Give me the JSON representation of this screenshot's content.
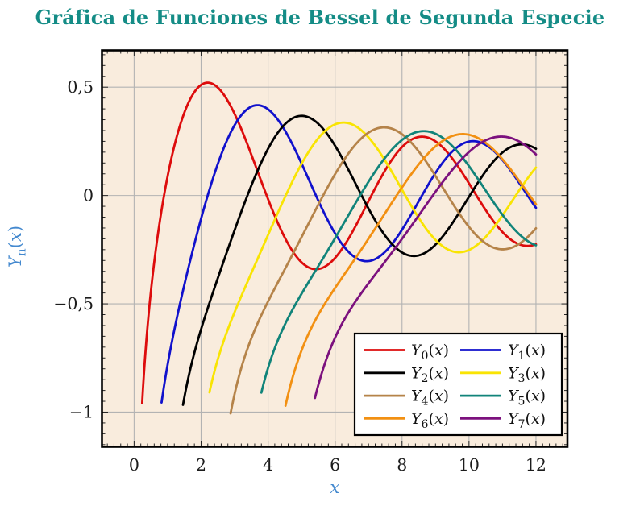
{
  "chart_data": {
    "type": "line",
    "title": "Gráfica de Funciones de Bessel de Segunda Especie",
    "title_color": "#148c86",
    "xlabel": "x",
    "ylabel": {
      "base": "Y",
      "sub": "n",
      "suffix": "(x)"
    },
    "axis_label_color": "#4489cf",
    "xlim": [
      -0.96,
      12.94
    ],
    "ylim": [
      -1.16,
      0.67
    ],
    "x_ticks": [
      {
        "v": 0,
        "label": "0"
      },
      {
        "v": 2,
        "label": "2"
      },
      {
        "v": 4,
        "label": "4"
      },
      {
        "v": 6,
        "label": "6"
      },
      {
        "v": 8,
        "label": "8"
      },
      {
        "v": 10,
        "label": "10"
      },
      {
        "v": 12,
        "label": "12"
      }
    ],
    "y_ticks": [
      {
        "v": 0.5,
        "label": "0,5"
      },
      {
        "v": 0,
        "label": "0"
      },
      {
        "v": -0.5,
        "label": "−0,5"
      },
      {
        "v": -1,
        "label": "−1"
      }
    ],
    "x_minor_step": 0.2,
    "y_minor_step": 0.05,
    "grid": true,
    "grid_color": "#b3b3b3",
    "plot_background": "#f9ecdd",
    "frame_color": "#000000",
    "tick_color": "#262626",
    "tick_label_color": "#1c1c1c",
    "function_family": "Bessel functions of the second kind Y_n(x), orders n = 0 to 7",
    "legend": {
      "position": "bottom-right",
      "columns": 2,
      "background": "#ffffff",
      "border_color": "#000000"
    },
    "series": [
      {
        "n": 0,
        "label": "Y_0(x)",
        "color": "#dd0c0c",
        "x_start": 0.24,
        "x_end": 12,
        "key_points": [
          [
            0.24,
            -0.96
          ],
          [
            0.894,
            0
          ],
          [
            2.197,
            0.521
          ],
          [
            3.958,
            0
          ],
          [
            5.429,
            -0.34
          ],
          [
            7.086,
            0
          ],
          [
            8.596,
            0.274
          ],
          [
            10.222,
            0
          ],
          [
            11.749,
            -0.233
          ],
          [
            12,
            -0.225
          ]
        ]
      },
      {
        "n": 1,
        "label": "Y_1(x)",
        "color": "#1111cc",
        "x_start": 0.82,
        "x_end": 12,
        "key_points": [
          [
            0.82,
            -0.95
          ],
          [
            2.197,
            0
          ],
          [
            3.683,
            0.417
          ],
          [
            5.43,
            0
          ],
          [
            6.941,
            -0.303
          ],
          [
            8.596,
            0
          ],
          [
            10.123,
            0.249
          ],
          [
            11.749,
            0
          ],
          [
            12,
            -0.057
          ]
        ]
      },
      {
        "n": 2,
        "label": "Y_2(x)",
        "color": "#000000",
        "x_start": 1.46,
        "x_end": 12,
        "key_points": [
          [
            1.46,
            -0.975
          ],
          [
            3.384,
            0
          ],
          [
            5.02,
            0.368
          ],
          [
            6.794,
            0
          ],
          [
            8.38,
            -0.279
          ],
          [
            10.023,
            0
          ],
          [
            11.56,
            0.236
          ],
          [
            12,
            0.216
          ]
        ]
      },
      {
        "n": 3,
        "label": "Y_3(x)",
        "color": "#f9e403",
        "x_start": 2.25,
        "x_end": 12,
        "key_points": [
          [
            2.25,
            -0.97
          ],
          [
            4.527,
            0
          ],
          [
            6.29,
            0.337
          ],
          [
            8.098,
            0
          ],
          [
            9.9,
            -0.261
          ],
          [
            11.396,
            0
          ],
          [
            12,
            0.129
          ]
        ]
      },
      {
        "n": 4,
        "label": "Y_4(x)",
        "color": "#b58349",
        "x_start": 2.88,
        "x_end": 12,
        "key_points": [
          [
            2.88,
            -1.0
          ],
          [
            5.645,
            0
          ],
          [
            7.5,
            0.315
          ],
          [
            9.362,
            0
          ],
          [
            11.0,
            -0.249
          ],
          [
            12,
            -0.151
          ]
        ]
      },
      {
        "n": 5,
        "label": "Y_5(x)",
        "color": "#11847a",
        "x_start": 3.8,
        "x_end": 12,
        "key_points": [
          [
            3.8,
            -0.99
          ],
          [
            6.747,
            0
          ],
          [
            8.6,
            0.297
          ],
          [
            10.597,
            0
          ],
          [
            12,
            -0.23
          ]
        ]
      },
      {
        "n": 6,
        "label": "Y_6(x)",
        "color": "#f29012",
        "x_start": 4.52,
        "x_end": 12,
        "key_points": [
          [
            4.52,
            -0.97
          ],
          [
            7.838,
            0
          ],
          [
            9.9,
            0.283
          ],
          [
            11.811,
            0
          ],
          [
            12,
            -0.04
          ]
        ]
      },
      {
        "n": 7,
        "label": "Y_7(x)",
        "color": "#7c117e",
        "x_start": 5.4,
        "x_end": 12,
        "key_points": [
          [
            5.4,
            -0.95
          ],
          [
            8.94,
            0
          ],
          [
            11.3,
            0.268
          ],
          [
            12,
            0.19
          ]
        ]
      }
    ]
  }
}
